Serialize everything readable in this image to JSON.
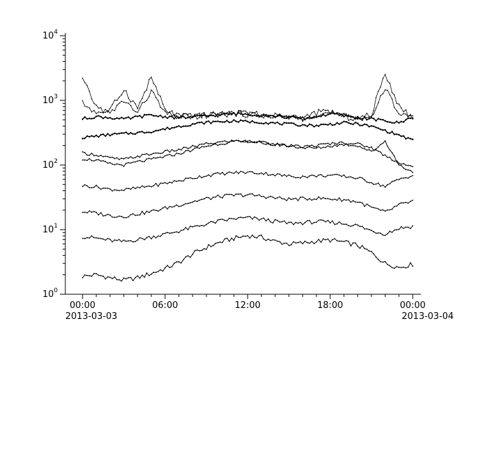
{
  "chart_data": {
    "type": "line",
    "title": "",
    "xlabel": "",
    "ylabel": "",
    "background": "#ffffff",
    "line_color": "#000000",
    "y_scale": "log",
    "y_range": [
      1,
      10000
    ],
    "y_major_ticks": [
      {
        "value": 1,
        "base": "10",
        "exp": "0"
      },
      {
        "value": 10,
        "base": "10",
        "exp": "1"
      },
      {
        "value": 100,
        "base": "10",
        "exp": "2"
      },
      {
        "value": 1000,
        "base": "10",
        "exp": "3"
      },
      {
        "value": 10000,
        "base": "10",
        "exp": "4"
      }
    ],
    "y_minor_tick_multiples": [
      2,
      3,
      4,
      5,
      6,
      7,
      8,
      9
    ],
    "x_unit": "hours",
    "x_range_hours": [
      0,
      24
    ],
    "x_minor_tick_step_hours": 1,
    "x_major_ticks": [
      {
        "hour": 0,
        "label": "00:00"
      },
      {
        "hour": 6,
        "label": "06:00"
      },
      {
        "hour": 12,
        "label": "12:00"
      },
      {
        "hour": 18,
        "label": "18:00"
      },
      {
        "hour": 24,
        "label": "00:00"
      }
    ],
    "x_date_labels": [
      {
        "hour": 0,
        "label": "2013-03-03",
        "align": "start"
      },
      {
        "hour": 24,
        "label": "2013-03-04",
        "align": "start"
      }
    ],
    "hours_step": 1,
    "series": [
      {
        "name": "trace-01",
        "jitter_log10": 0.035,
        "width": 1.0,
        "values": [
          1.9,
          2.0,
          1.8,
          1.65,
          1.8,
          2.1,
          2.5,
          3.1,
          4.2,
          5.3,
          6.4,
          7.3,
          8.1,
          7.6,
          6.6,
          6.0,
          6.2,
          6.6,
          6.9,
          6.4,
          5.7,
          4.4,
          3.0,
          2.6,
          2.9
        ]
      },
      {
        "name": "trace-02",
        "jitter_log10": 0.03,
        "width": 1.0,
        "values": [
          7.8,
          7.4,
          6.8,
          6.5,
          7.0,
          7.7,
          8.5,
          9.5,
          10.8,
          12.2,
          13.6,
          14.7,
          15.2,
          14.5,
          13.4,
          12.5,
          12.8,
          13.3,
          13.0,
          12.4,
          11.5,
          9.6,
          8.6,
          10.5,
          11.2
        ]
      },
      {
        "name": "trace-03",
        "jitter_log10": 0.028,
        "width": 1.0,
        "values": [
          19,
          18,
          16.5,
          16,
          17.5,
          19,
          21.5,
          24,
          27,
          30,
          32.5,
          34,
          34.5,
          33,
          31,
          29.5,
          30,
          30.5,
          30,
          29,
          27,
          22,
          18.5,
          24,
          27.5
        ]
      },
      {
        "name": "trace-04",
        "jitter_log10": 0.025,
        "width": 1.0,
        "values": [
          48,
          46,
          42,
          41,
          44,
          47.5,
          52,
          57,
          63,
          69,
          73,
          76,
          77,
          75,
          71,
          67,
          66,
          68,
          69,
          67,
          63,
          54,
          47,
          60,
          69
        ]
      },
      {
        "name": "trace-05",
        "jitter_log10": 0.022,
        "width": 1.0,
        "values": [
          125,
          118,
          104,
          100,
          112,
          122,
          135,
          150,
          172,
          196,
          214,
          228,
          233,
          224,
          210,
          196,
          186,
          182,
          196,
          208,
          200,
          160,
          235,
          100,
          78
        ]
      },
      {
        "name": "trace-06",
        "jitter_log10": 0.022,
        "width": 1.0,
        "values": [
          152,
          144,
          128,
          122,
          136,
          148,
          160,
          172,
          192,
          212,
          226,
          236,
          232,
          222,
          208,
          198,
          192,
          200,
          214,
          222,
          212,
          185,
          140,
          110,
          92
        ]
      },
      {
        "name": "trace-07",
        "jitter_log10": 0.02,
        "width": 1.4,
        "values": [
          265,
          280,
          295,
          305,
          315,
          330,
          360,
          395,
          430,
          455,
          470,
          478,
          470,
          458,
          442,
          428,
          415,
          408,
          428,
          450,
          432,
          395,
          340,
          290,
          240
        ]
      },
      {
        "name": "trace-08",
        "jitter_log10": 0.022,
        "width": 1.4,
        "values": [
          520,
          560,
          540,
          510,
          555,
          590,
          560,
          540,
          550,
          575,
          600,
          620,
          610,
          590,
          565,
          545,
          525,
          560,
          615,
          580,
          540,
          515,
          480,
          445,
          555
        ]
      },
      {
        "name": "trace-09",
        "jitter_log10": 0.05,
        "width": 0.8,
        "values": [
          900,
          650,
          700,
          1500,
          750,
          2300,
          700,
          580,
          560,
          585,
          610,
          630,
          615,
          590,
          570,
          550,
          530,
          640,
          680,
          560,
          520,
          600,
          2700,
          800,
          560
        ]
      },
      {
        "name": "trace-10",
        "jitter_log10": 0.045,
        "width": 0.8,
        "values": [
          2100,
          800,
          620,
          1000,
          640,
          1400,
          620,
          560,
          572,
          592,
          615,
          635,
          622,
          600,
          580,
          558,
          538,
          600,
          640,
          570,
          530,
          560,
          1500,
          650,
          540
        ]
      }
    ]
  }
}
